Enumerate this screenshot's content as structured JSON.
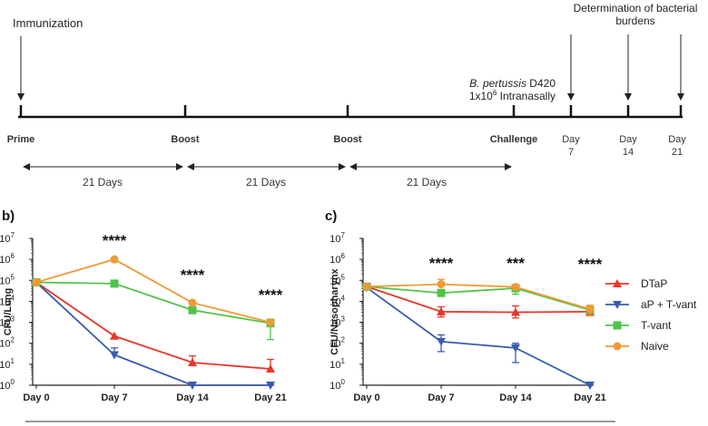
{
  "timeline": {
    "immunization_label": "Immunization",
    "determination_label_line1": "Determination of bacterial",
    "determination_label_line2": "burdens",
    "challenge_label_italic": "B. pertussis",
    "challenge_label_strain": " D420",
    "challenge_dose_prefix": "1x10",
    "challenge_dose_exp": "6",
    "challenge_dose_suffix": " Intranasally",
    "events": [
      "Prime",
      "Boost",
      "Boost",
      "Challenge"
    ],
    "days": [
      {
        "line1": "Day",
        "line2": "7"
      },
      {
        "line1": "Day",
        "line2": "14"
      },
      {
        "line1": "Day",
        "line2": "21"
      }
    ],
    "intervals": [
      "21 Days",
      "21 Days",
      "21 Days"
    ]
  },
  "panel_b_label": "b)",
  "panel_c_label": "c)",
  "legend": [
    {
      "name": "DTaP",
      "color": "#e8352a",
      "marker": "triangle-up"
    },
    {
      "name": "aP + T-vant",
      "color": "#3a5bb0",
      "marker": "triangle-down"
    },
    {
      "name": "T-vant",
      "color": "#4fc34a",
      "marker": "square"
    },
    {
      "name": "Naive",
      "color": "#ef9a35",
      "marker": "circle"
    }
  ],
  "chart_data": [
    {
      "type": "line",
      "ylabel": "CFU/Lung",
      "y_scale": "log",
      "ylim": [
        1,
        10000000
      ],
      "y_ticks": [
        {
          "base": "10",
          "exp": "0"
        },
        {
          "base": "10",
          "exp": "1"
        },
        {
          "base": "10",
          "exp": "2"
        },
        {
          "base": "10",
          "exp": "3"
        },
        {
          "base": "10",
          "exp": "4"
        },
        {
          "base": "10",
          "exp": "5"
        },
        {
          "base": "10",
          "exp": "6"
        },
        {
          "base": "10",
          "exp": "7"
        }
      ],
      "categories": [
        "Day 0",
        "Day 7",
        "Day 14",
        "Day 21"
      ],
      "significance": [
        null,
        "****",
        "****",
        "****"
      ],
      "series": [
        {
          "name": "DTaP",
          "values": [
            80000,
            220,
            12,
            6
          ],
          "err_upper": [
            null,
            null,
            25,
            17
          ]
        },
        {
          "name": "aP + T-vant",
          "values": [
            80000,
            28,
            1,
            1
          ],
          "err_upper": [
            null,
            60,
            null,
            null
          ]
        },
        {
          "name": "T-vant",
          "values": [
            80000,
            70000,
            3800,
            900
          ],
          "err_upper": [
            null,
            null,
            null,
            1400
          ],
          "err_lower": [
            null,
            null,
            null,
            150
          ]
        },
        {
          "name": "Naive",
          "values": [
            80000,
            1000000,
            8500,
            1000
          ],
          "err_upper": [
            null,
            null,
            null,
            null
          ]
        }
      ]
    },
    {
      "type": "line",
      "ylabel": "CFU/Nasopharynx",
      "y_scale": "log",
      "ylim": [
        1,
        10000000
      ],
      "y_ticks": [
        {
          "base": "10",
          "exp": "0"
        },
        {
          "base": "10",
          "exp": "1"
        },
        {
          "base": "10",
          "exp": "2"
        },
        {
          "base": "10",
          "exp": "3"
        },
        {
          "base": "10",
          "exp": "4"
        },
        {
          "base": "10",
          "exp": "5"
        },
        {
          "base": "10",
          "exp": "6"
        },
        {
          "base": "10",
          "exp": "7"
        }
      ],
      "categories": [
        "Day 0",
        "Day 7",
        "Day 14",
        "Day 21"
      ],
      "significance": [
        null,
        "****",
        "***",
        "****"
      ],
      "series": [
        {
          "name": "DTaP",
          "values": [
            50000,
            3200,
            3000,
            3200
          ],
          "err_upper": [
            null,
            5500,
            6000,
            null
          ],
          "err_lower": [
            null,
            1800,
            1600,
            null
          ]
        },
        {
          "name": "aP + T-vant",
          "values": [
            45000,
            120,
            60,
            1
          ],
          "err_upper": [
            null,
            250,
            100,
            null
          ],
          "err_lower": [
            null,
            40,
            12,
            null
          ]
        },
        {
          "name": "T-vant",
          "values": [
            50000,
            25000,
            42000,
            3800
          ],
          "err_upper": [
            null,
            null,
            60000,
            null
          ],
          "err_lower": [
            null,
            null,
            22000,
            null
          ]
        },
        {
          "name": "Naive",
          "values": [
            50000,
            65000,
            48000,
            4200
          ],
          "err_upper": [
            null,
            110000,
            null,
            6500
          ],
          "err_lower": [
            null,
            null,
            null,
            2000
          ]
        }
      ]
    }
  ]
}
